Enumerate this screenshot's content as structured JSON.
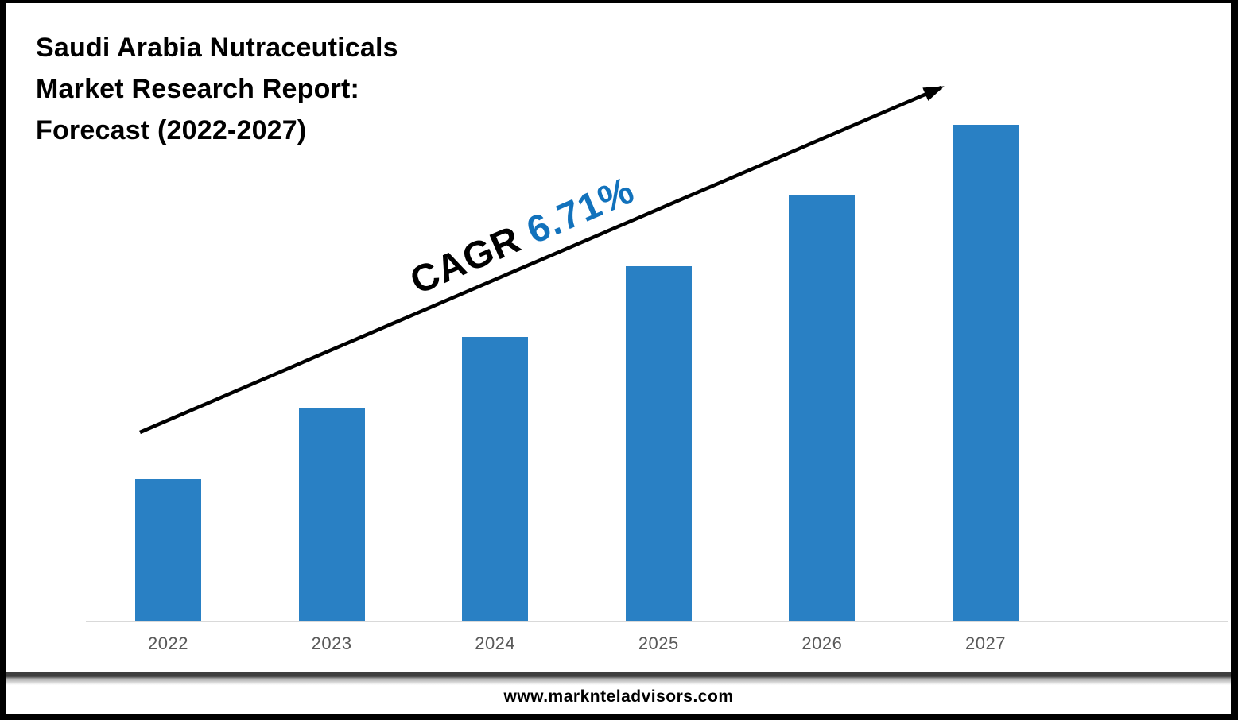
{
  "header": {
    "title_lines": [
      "Saudi Arabia Nutraceuticals",
      "Market Research Report:",
      "Forecast (2022-2027)"
    ]
  },
  "annotation": {
    "cagr_label": "CAGR ",
    "cagr_value": "6.71%"
  },
  "footer": {
    "website": "www.marknteladvisors.com"
  },
  "colors": {
    "bar_blue": "#2980C4",
    "cagr_value_blue": "#1272BC",
    "cagr_label_black": "#000000",
    "arrow_black": "#000000",
    "axis_line_gray": "#D9D9D9",
    "year_label_gray": "#595959",
    "footer_divider_gray": "#3F3F3F"
  },
  "chart_data": {
    "type": "bar",
    "title": "Saudi Arabia Nutraceuticals Market Research Report: Forecast (2022-2027)",
    "categories": [
      "2022",
      "2023",
      "2024",
      "2025",
      "2026",
      "2027"
    ],
    "values": [
      2,
      3,
      4,
      5,
      6,
      7
    ],
    "value_note": "No y-axis or data labels shown; values are relative bar heights which grow linearly (2022 smallest to 2027 tallest, ratio 2:3:4:5:6:7)",
    "xlabel": "",
    "ylabel": "",
    "ylim": [
      0,
      7
    ],
    "grid": false,
    "legend": false,
    "annotations": [
      "CAGR 6.71% (rotated along rising trend arrow)"
    ],
    "series_color": "#2980C4"
  }
}
